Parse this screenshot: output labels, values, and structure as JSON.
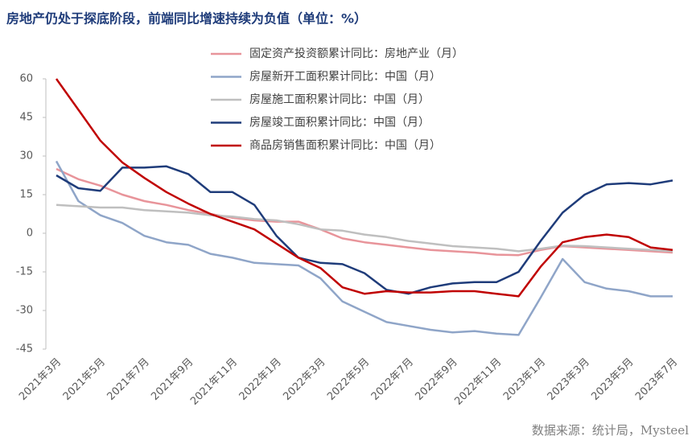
{
  "chart_data": {
    "type": "line",
    "title": "房地产仍处于探底阶段，前端同比增速持续为负值（单位：%）",
    "source": "数据来源：统计局，Mysteel",
    "categories": [
      "2021年3月",
      null,
      "2021年5月",
      null,
      "2021年7月",
      null,
      "2021年9月",
      null,
      "2021年11月",
      null,
      "2022年1月",
      null,
      "2022年3月",
      null,
      "2022年5月",
      null,
      "2022年7月",
      null,
      "2022年9月",
      null,
      "2022年11月",
      null,
      "2023年1月",
      null,
      "2023年3月",
      null,
      "2023年5月",
      null,
      "2023年7月"
    ],
    "ylim": [
      -45,
      60
    ],
    "yticks": [
      -45,
      -30,
      -15,
      0,
      15,
      30,
      45,
      60
    ],
    "grid": false,
    "legend": "upper center",
    "series": [
      {
        "name": "固定资产投资额累计同比：房地产业（月）",
        "color": "#e8949a",
        "values": [
          25,
          21,
          18.5,
          15,
          12.5,
          11,
          9,
          7.5,
          6,
          5,
          4.5,
          4.5,
          1.5,
          -2,
          -3.5,
          -4.5,
          -5.5,
          -6.5,
          -7,
          -7.5,
          -8.3,
          -8.5,
          -6.5,
          -5,
          -5.5,
          -6,
          -6.5,
          -7,
          -7.5
        ]
      },
      {
        "name": "房屋新开工面积累计同比：中国（月）",
        "color": "#8fa5c8",
        "values": [
          28,
          12.5,
          7,
          4,
          -1,
          -3.5,
          -4.5,
          -8,
          -9.5,
          -11.5,
          -12,
          -12.5,
          -17.5,
          -26.5,
          -30.5,
          -34.5,
          -36,
          -37.5,
          -38.5,
          -38,
          -39,
          -39.5,
          -25,
          -10,
          -19,
          -21.5,
          -22.5,
          -24.5,
          -24.5
        ]
      },
      {
        "name": "房屋施工面积累计同比：中国（月）",
        "color": "#bfbfbf",
        "values": [
          11,
          10.5,
          10,
          10,
          9,
          8.5,
          8,
          7,
          6.5,
          5.5,
          5,
          3.5,
          1.5,
          1,
          -0.5,
          -1.5,
          -3,
          -4,
          -5,
          -5.5,
          -6,
          -7,
          -6,
          -4.8,
          -5,
          -5.5,
          -6,
          -6.5,
          -7
        ]
      },
      {
        "name": "房屋竣工面积累计同比：中国（月）",
        "color": "#1f3c7a",
        "values": [
          22.5,
          17.5,
          16.5,
          25.5,
          25.5,
          26,
          23,
          16,
          16,
          11,
          -1,
          -9.5,
          -11.5,
          -12,
          -15.5,
          -22,
          -23.5,
          -21,
          -19.5,
          -19,
          -19,
          -15,
          -3,
          8,
          15,
          19,
          19.5,
          19,
          20.5
        ]
      },
      {
        "name": "商品房销售面积累计同比：中国（月）",
        "color": "#c00000",
        "values": [
          60,
          48,
          36,
          27.5,
          21.5,
          16,
          11.5,
          7.5,
          4.5,
          1.5,
          -4,
          -9.5,
          -13.5,
          -21,
          -23.5,
          -22.5,
          -23,
          -23,
          -22.5,
          -22.5,
          -23.5,
          -24.5,
          -13,
          -3.5,
          -1.5,
          -0.5,
          -1.5,
          -5.5,
          -6.5
        ]
      }
    ]
  }
}
